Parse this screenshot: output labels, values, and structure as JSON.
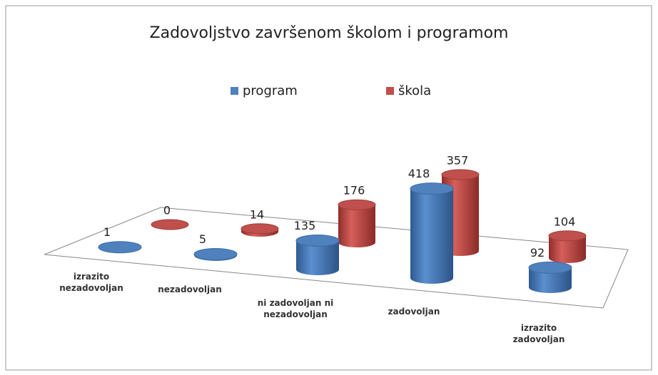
{
  "chart_data": {
    "type": "bar3d",
    "title": "Zadovoljstvo završenom školom i programom",
    "categories": [
      "izrazito nezadovoljan",
      "nezadovoljan",
      "ni zadovoljan ni nezadovoljan",
      "zadovoljan",
      "izrazito zadovoljan"
    ],
    "series": [
      {
        "name": "program",
        "color": "#4f81bd",
        "values": [
          1,
          5,
          135,
          418,
          92
        ]
      },
      {
        "name": "škola",
        "color": "#c0504d",
        "values": [
          0,
          14,
          176,
          357,
          104
        ]
      }
    ],
    "legend": "top"
  }
}
